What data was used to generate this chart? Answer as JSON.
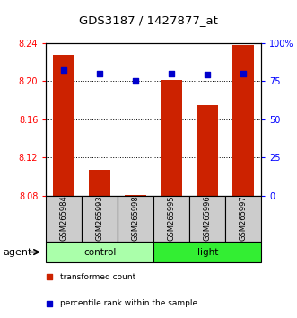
{
  "title": "GDS3187 / 1427877_at",
  "samples": [
    "GSM265984",
    "GSM265993",
    "GSM265998",
    "GSM265995",
    "GSM265996",
    "GSM265997"
  ],
  "bar_values": [
    8.228,
    8.107,
    8.081,
    8.201,
    8.175,
    8.238
  ],
  "percentile_values": [
    82,
    80,
    75,
    80,
    79,
    80
  ],
  "bar_bottom": 8.08,
  "ylim_left": [
    8.08,
    8.24
  ],
  "ylim_right": [
    0,
    100
  ],
  "yticks_left": [
    8.08,
    8.12,
    8.16,
    8.2,
    8.24
  ],
  "yticks_right": [
    0,
    25,
    50,
    75,
    100
  ],
  "ytick_labels_right": [
    "0",
    "25",
    "50",
    "75",
    "100%"
  ],
  "bar_color": "#cc2200",
  "dot_color": "#0000cc",
  "bar_width": 0.6,
  "control_color": "#aaffaa",
  "light_color": "#33ee33",
  "sample_box_color": "#cccccc",
  "agent_label": "agent",
  "legend_items": [
    {
      "color": "#cc2200",
      "label": "transformed count"
    },
    {
      "color": "#0000cc",
      "label": "percentile rank within the sample"
    }
  ]
}
